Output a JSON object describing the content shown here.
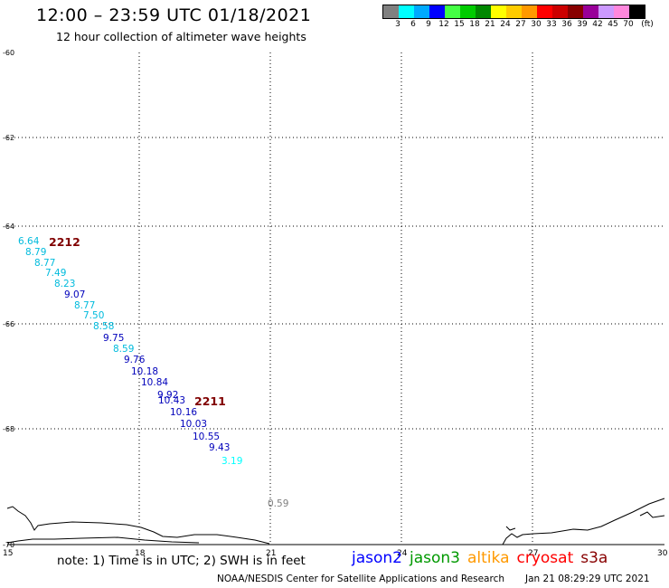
{
  "header": {
    "title": "12:00 – 23:59 UTC 01/18/2021",
    "subtitle": "12 hour collection of altimeter wave heights"
  },
  "scale": {
    "colors": [
      "#808080",
      "#00ffff",
      "#00aaff",
      "#0000ff",
      "#44ff44",
      "#00cc00",
      "#008800",
      "#ffff00",
      "#ffcc00",
      "#ff9900",
      "#ff0000",
      "#cc0000",
      "#880000",
      "#990099",
      "#cc99ff",
      "#ff88dd",
      "#000000"
    ],
    "labels": [
      "3",
      "6",
      "9",
      "12",
      "15",
      "18",
      "21",
      "24",
      "27",
      "30",
      "33",
      "36",
      "39",
      "42",
      "45",
      "70",
      "(ft)"
    ]
  },
  "axes": {
    "lat_labels": [
      "-60",
      "-62",
      "-64",
      "-66",
      "-68",
      "-70"
    ],
    "lon_labels": [
      "15",
      "18",
      "21",
      "24",
      "27",
      "30"
    ]
  },
  "tracks": [
    {
      "label": "2212",
      "color": "#800000"
    },
    {
      "label": "2211",
      "color": "#800000"
    }
  ],
  "wave_heights": [
    {
      "v": "6.64",
      "color": "#00bbdd"
    },
    {
      "v": "8.79",
      "color": "#00bbdd"
    },
    {
      "v": "8.77",
      "color": "#00bbdd"
    },
    {
      "v": "7.49",
      "color": "#00bbdd"
    },
    {
      "v": "8.23",
      "color": "#00bbdd"
    },
    {
      "v": "9.07",
      "color": "#0000bb"
    },
    {
      "v": "8.77",
      "color": "#00bbdd"
    },
    {
      "v": "7.50",
      "color": "#00bbdd"
    },
    {
      "v": "8.58",
      "color": "#00bbdd"
    },
    {
      "v": "9.75",
      "color": "#0000bb"
    },
    {
      "v": "8.59",
      "color": "#00bbdd"
    },
    {
      "v": "9.76",
      "color": "#0000bb"
    },
    {
      "v": "10.18",
      "color": "#0000bb"
    },
    {
      "v": "10.84",
      "color": "#0000bb"
    },
    {
      "v": "9.92",
      "color": "#0000bb"
    },
    {
      "v": "10.43",
      "color": "#0000bb"
    },
    {
      "v": "10.16",
      "color": "#0000bb"
    },
    {
      "v": "10.03",
      "color": "#0000bb"
    },
    {
      "v": "10.55",
      "color": "#0000bb"
    },
    {
      "v": "9.43",
      "color": "#0000bb"
    },
    {
      "v": "3.19",
      "color": "#00ffff"
    },
    {
      "v": "0.59",
      "color": "#808080"
    }
  ],
  "footer": {
    "note": "note: 1) Time is in UTC; 2) SWH is in feet",
    "satellites": [
      {
        "name": "jason2",
        "color": "#0000ff"
      },
      {
        "name": "jason3",
        "color": "#009900"
      },
      {
        "name": "altika",
        "color": "#ff9900"
      },
      {
        "name": "cryosat",
        "color": "#ff0000"
      },
      {
        "name": "s3a",
        "color": "#880000"
      }
    ],
    "credit": "NOAA/NESDIS Center for Satellite Applications and Research",
    "timestamp": "Jan 21 08:29:29 UTC 2021"
  }
}
